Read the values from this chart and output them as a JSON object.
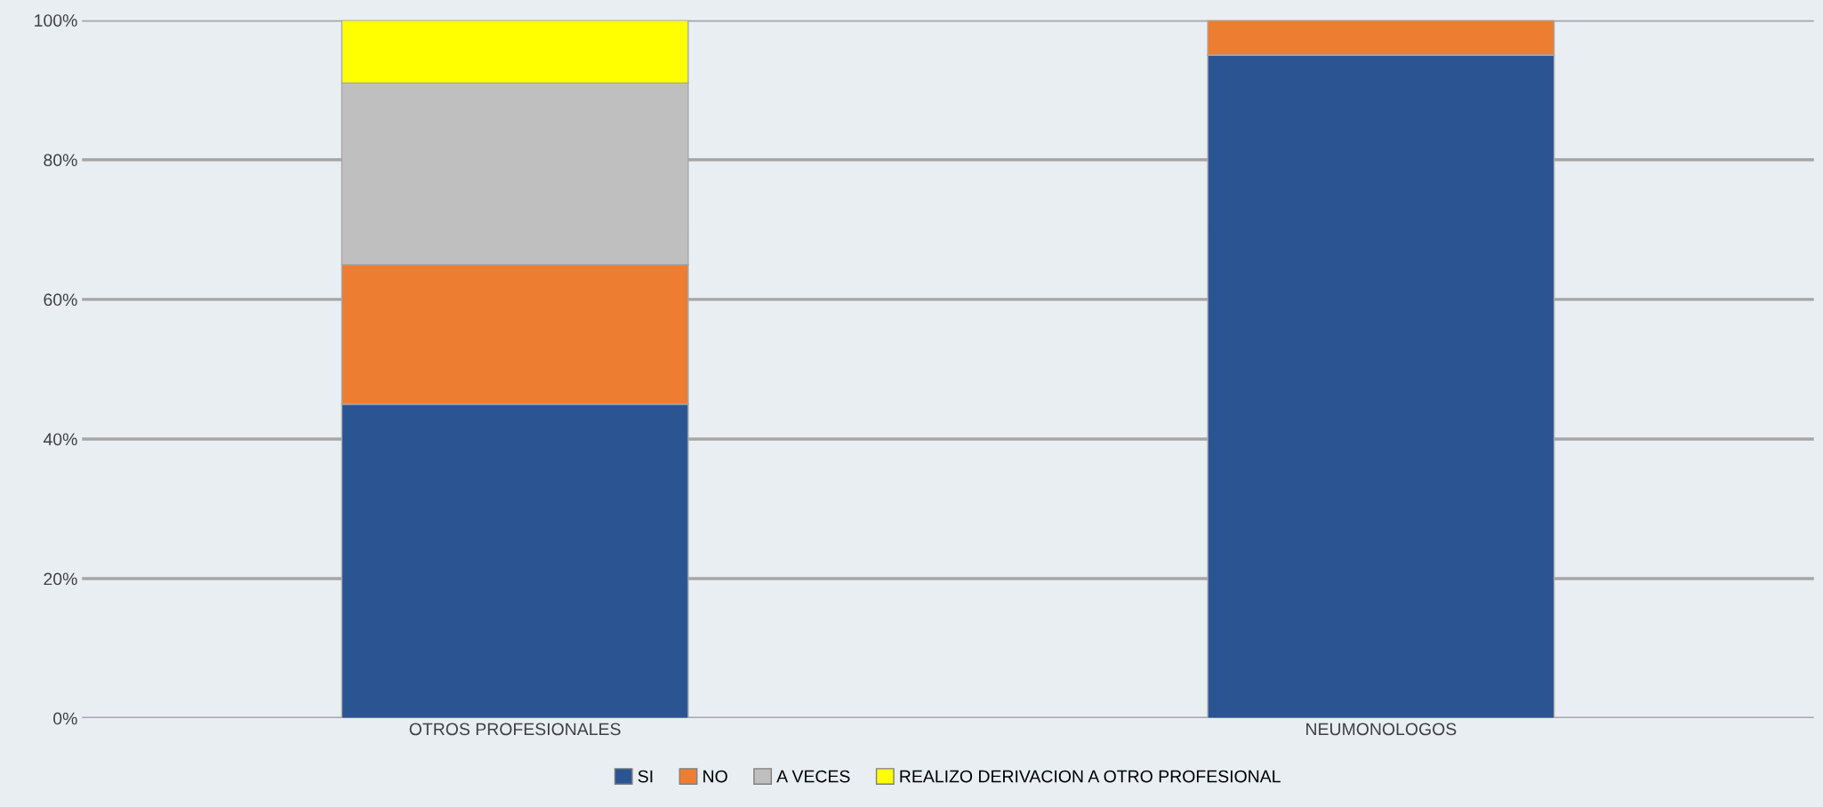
{
  "chart_data": {
    "type": "bar",
    "stacked": true,
    "categories": [
      "OTROS PROFESIONALES",
      "NEUMONOLOGOS"
    ],
    "series": [
      {
        "name": "SI",
        "color": "#2b5493",
        "values": [
          45,
          95
        ]
      },
      {
        "name": "NO",
        "color": "#ed7d31",
        "values": [
          20,
          5
        ]
      },
      {
        "name": "A VECES",
        "color": "#bfbfbf",
        "values": [
          26,
          0
        ]
      },
      {
        "name": "REALIZO DERIVACION A OTRO PROFESIONAL",
        "color": "#ffff00",
        "values": [
          9,
          0
        ]
      }
    ],
    "ylim": [
      0,
      100
    ],
    "yticks": [
      {
        "value": 0,
        "label": "0%"
      },
      {
        "value": 20,
        "label": "20%"
      },
      {
        "value": 40,
        "label": "40%"
      },
      {
        "value": 60,
        "label": "60%"
      },
      {
        "value": 80,
        "label": "80%"
      },
      {
        "value": 100,
        "label": "100%"
      }
    ],
    "grid": "y",
    "legend": "bottom"
  }
}
